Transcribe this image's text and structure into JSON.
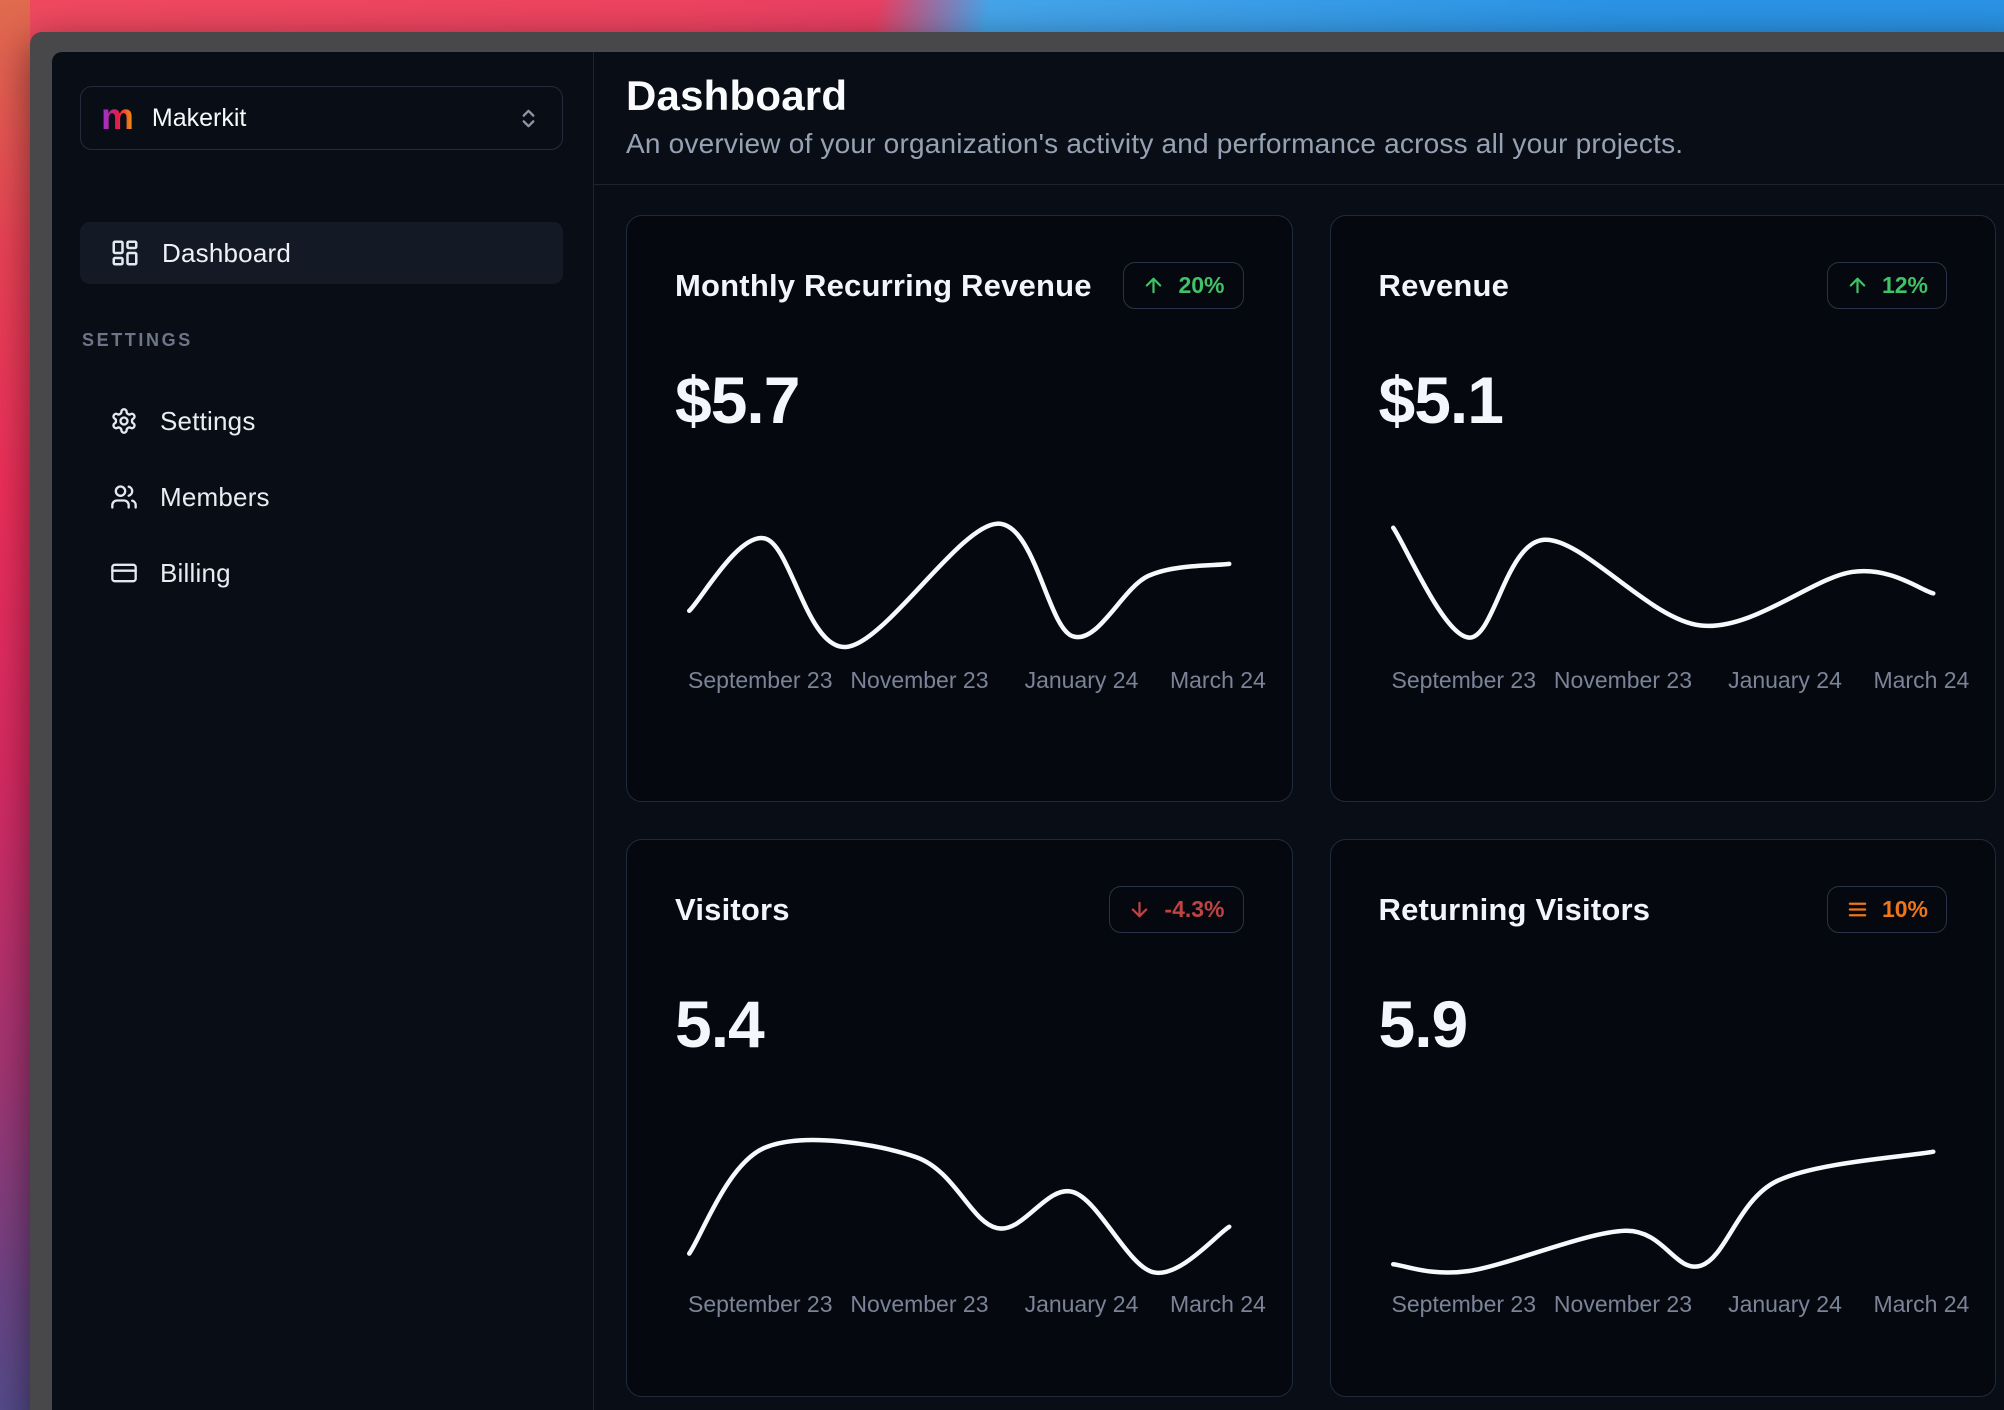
{
  "window": {
    "kind": "macOS window on Big Sur wallpaper"
  },
  "sidebar": {
    "workspace": {
      "logo_letter": "m",
      "name": "Makerkit"
    },
    "nav_main": {
      "label": "Dashboard",
      "icon": "layout-dashboard-icon",
      "active": true
    },
    "section_label": "SETTINGS",
    "settings_nav": [
      {
        "label": "Settings",
        "icon": "gear-icon"
      },
      {
        "label": "Members",
        "icon": "users-icon"
      },
      {
        "label": "Billing",
        "icon": "credit-card-icon"
      }
    ]
  },
  "header": {
    "title": "Dashboard",
    "subtitle": "An overview of your organization's activity and performance across all your projects."
  },
  "colors": {
    "trend_up": "#3fc268",
    "trend_down": "#bf4343",
    "trend_neutral": "#ee7618",
    "line": "#f7f9fc",
    "card_border": "#212a3c",
    "accent_gradient": [
      "#9333ea",
      "#e11d48",
      "#f59e0b"
    ]
  },
  "cards": [
    {
      "title": "Monthly Recurring Revenue",
      "value": "$5.7",
      "trend": "up",
      "trend_label": "20%"
    },
    {
      "title": "Revenue",
      "value": "$5.1",
      "trend": "up",
      "trend_label": "12%"
    },
    {
      "title": "Visitors",
      "value": "5.4",
      "trend": "down",
      "trend_label": "-4.3%"
    },
    {
      "title": "Returning Visitors",
      "value": "5.9",
      "trend": "neutral",
      "trend_label": "10%"
    }
  ],
  "x_axis_labels": [
    "September 23",
    "November 23",
    "January 24",
    "March 24"
  ],
  "x_axis_label_positions": [
    15,
    43,
    71.5,
    95.5
  ],
  "chart_data": [
    {
      "type": "line",
      "title": "Monthly Recurring Revenue",
      "headline_value": "$5.7",
      "trend": "up",
      "trend_label": "20%",
      "x_tick_labels": [
        "September 23",
        "November 23",
        "January 24",
        "March 24"
      ],
      "x_range": [
        0,
        100
      ],
      "y_range": [
        0,
        100
      ],
      "grid": false,
      "legend": false,
      "points": [
        {
          "x": 0,
          "y": 30
        },
        {
          "x": 14,
          "y": 84
        },
        {
          "x": 29,
          "y": 3
        },
        {
          "x": 57,
          "y": 95
        },
        {
          "x": 71,
          "y": 11
        },
        {
          "x": 85,
          "y": 56
        },
        {
          "x": 100,
          "y": 65
        }
      ]
    },
    {
      "type": "line",
      "title": "Revenue",
      "headline_value": "$5.1",
      "trend": "up",
      "trend_label": "12%",
      "x_tick_labels": [
        "September 23",
        "November 23",
        "January 24",
        "March 24"
      ],
      "x_range": [
        0,
        100
      ],
      "y_range": [
        0,
        100
      ],
      "grid": false,
      "legend": false,
      "points": [
        {
          "x": 0,
          "y": 92
        },
        {
          "x": 14,
          "y": 10
        },
        {
          "x": 28,
          "y": 83
        },
        {
          "x": 57,
          "y": 19
        },
        {
          "x": 85,
          "y": 59
        },
        {
          "x": 100,
          "y": 43
        }
      ]
    },
    {
      "type": "line",
      "title": "Visitors",
      "headline_value": "5.4",
      "trend": "down",
      "trend_label": "-4.3%",
      "x_tick_labels": [
        "September 23",
        "November 23",
        "January 24",
        "March 24"
      ],
      "x_range": [
        0,
        100
      ],
      "y_range": [
        0,
        100
      ],
      "grid": false,
      "legend": false,
      "points": [
        {
          "x": 0,
          "y": 16
        },
        {
          "x": 14,
          "y": 95
        },
        {
          "x": 42,
          "y": 88
        },
        {
          "x": 57,
          "y": 35
        },
        {
          "x": 71,
          "y": 62
        },
        {
          "x": 86,
          "y": 2
        },
        {
          "x": 100,
          "y": 36
        }
      ]
    },
    {
      "type": "line",
      "title": "Returning Visitors",
      "headline_value": "5.9",
      "trend": "neutral",
      "trend_label": "10%",
      "x_tick_labels": [
        "September 23",
        "November 23",
        "January 24",
        "March 24"
      ],
      "x_range": [
        0,
        100
      ],
      "y_range": [
        0,
        100
      ],
      "grid": false,
      "legend": false,
      "points": [
        {
          "x": 0,
          "y": 8
        },
        {
          "x": 14,
          "y": 3
        },
        {
          "x": 43,
          "y": 33
        },
        {
          "x": 57,
          "y": 7
        },
        {
          "x": 71,
          "y": 70
        },
        {
          "x": 100,
          "y": 92
        }
      ]
    }
  ]
}
